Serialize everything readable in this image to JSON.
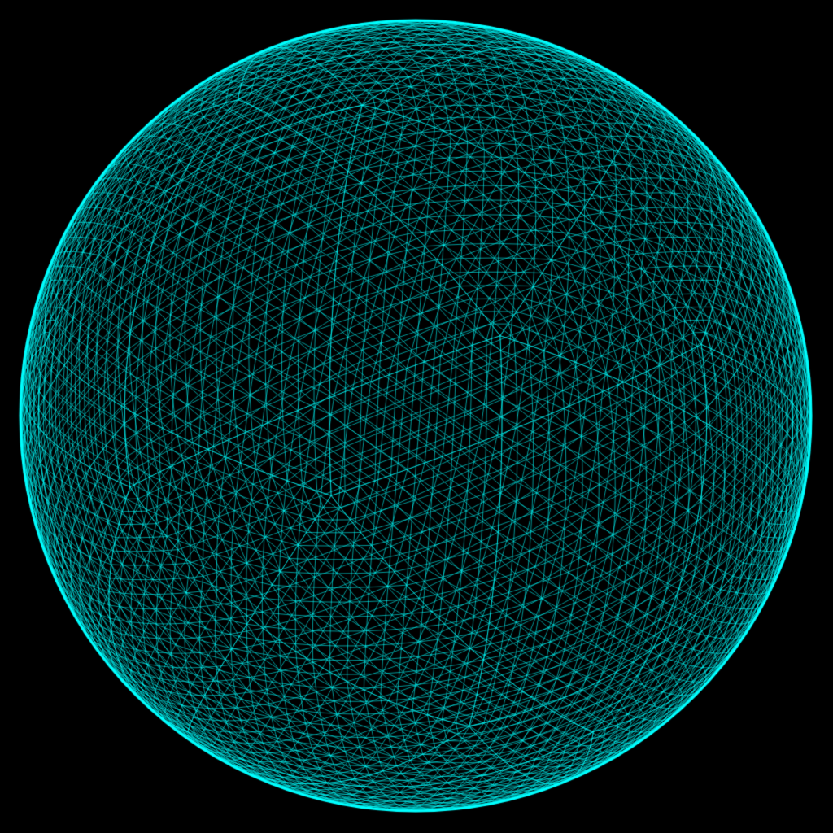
{
  "scene": {
    "background_color": "#000000",
    "object": "sphere",
    "render_style": "wireframe",
    "mesh_type": "triangulated",
    "wire_color": "#00ffff"
  }
}
